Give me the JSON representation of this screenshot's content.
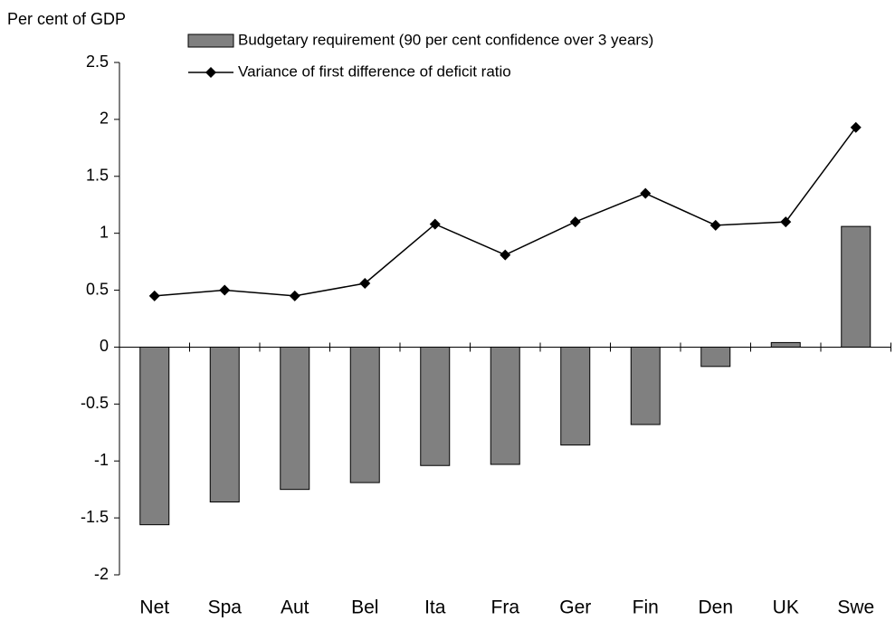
{
  "chart_data": {
    "type": "bar",
    "y_label": "Per cent of GDP",
    "categories": [
      "Net",
      "Spa",
      "Aut",
      "Bel",
      "Ita",
      "Fra",
      "Ger",
      "Fin",
      "Den",
      "UK",
      "Swe"
    ],
    "series": [
      {
        "name": "Budgetary requirement (90 per cent confidence over 3 years)",
        "type": "bar",
        "color": "#808080",
        "values": [
          -1.56,
          -1.36,
          -1.25,
          -1.19,
          -1.04,
          -1.03,
          -0.86,
          -0.68,
          -0.17,
          0.04,
          1.06
        ]
      },
      {
        "name": "Variance of first difference of deficit ratio",
        "type": "line",
        "color": "#000000",
        "values": [
          0.45,
          0.5,
          0.45,
          0.56,
          1.08,
          0.81,
          1.1,
          1.35,
          1.07,
          1.1,
          1.93
        ]
      }
    ],
    "ylim": [
      -2,
      2.5
    ],
    "yticks": [
      2.5,
      2,
      1.5,
      1,
      0.5,
      0,
      -0.5,
      -1,
      -1.5,
      -2
    ]
  }
}
